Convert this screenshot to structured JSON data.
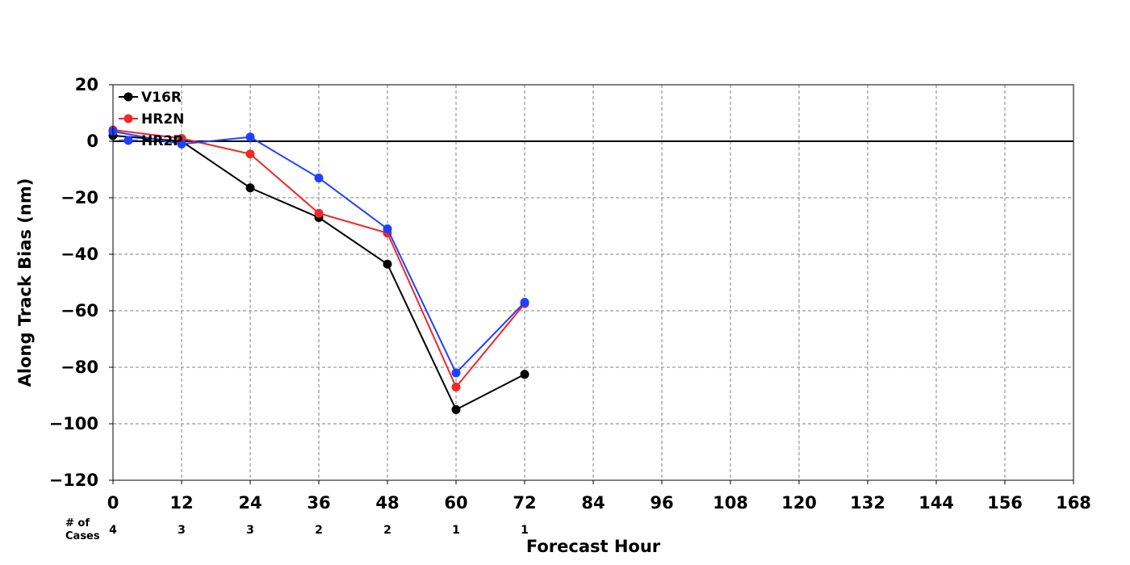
{
  "chart_data": {
    "type": "line",
    "xlabel": "Forecast Hour",
    "ylabel": "Along Track Bias (nm)",
    "xlim": [
      0,
      168
    ],
    "ylim": [
      -120,
      20
    ],
    "x_ticks": [
      0,
      12,
      24,
      36,
      48,
      60,
      72,
      84,
      96,
      108,
      120,
      132,
      144,
      156,
      168
    ],
    "y_ticks": [
      20,
      0,
      -20,
      -40,
      -60,
      -80,
      -100,
      -120
    ],
    "y_tick_labels": [
      "20",
      "0",
      "−20",
      "−40",
      "−60",
      "−80",
      "−100",
      "−120"
    ],
    "grid": true,
    "legend_position": "top-left",
    "cases_label": [
      "# of",
      "Cases"
    ],
    "cases": [
      {
        "x": 0,
        "n": "4"
      },
      {
        "x": 12,
        "n": "3"
      },
      {
        "x": 24,
        "n": "3"
      },
      {
        "x": 36,
        "n": "2"
      },
      {
        "x": 48,
        "n": "2"
      },
      {
        "x": 60,
        "n": "1"
      },
      {
        "x": 72,
        "n": "1"
      }
    ],
    "x": [
      0,
      12,
      24,
      36,
      48,
      60,
      72
    ],
    "series": [
      {
        "name": "V16R",
        "color": "#000000",
        "values": [
          2,
          0,
          -16.5,
          -27,
          -43.5,
          -95,
          -82.5
        ]
      },
      {
        "name": "HR2N",
        "color": "#f02828",
        "values": [
          4,
          1,
          -4.5,
          -25.5,
          -32.5,
          -87,
          -57.5
        ]
      },
      {
        "name": "HR2P",
        "color": "#2040ff",
        "values": [
          3.5,
          -1,
          1.5,
          -13,
          -31,
          -82,
          -57
        ]
      }
    ]
  }
}
